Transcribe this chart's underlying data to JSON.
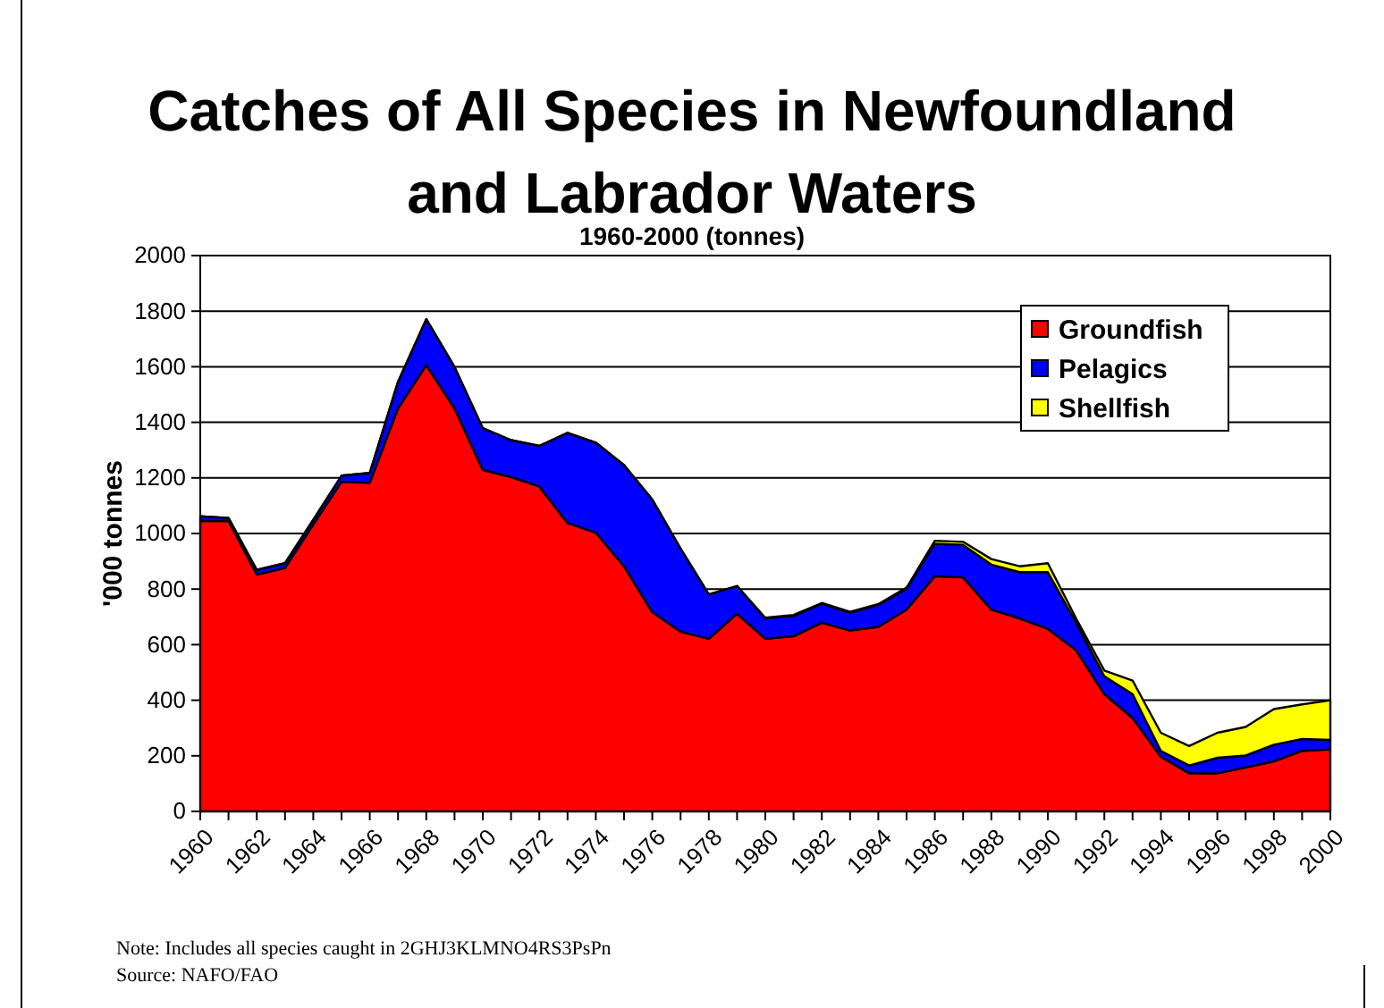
{
  "chart_data": {
    "type": "area",
    "stacked": true,
    "title": "Catches of All Species in Newfoundland and Labrador Waters",
    "subtitle": "1960-2000 (tonnes)",
    "ylabel": "'000 tonnes",
    "annotations": [
      "Note: Includes all species caught in 2GHJ3KLMNO4RS3PsPn",
      "Source: NAFO/FAO"
    ],
    "x": [
      1960,
      1961,
      1962,
      1963,
      1964,
      1965,
      1966,
      1967,
      1968,
      1969,
      1970,
      1971,
      1972,
      1973,
      1974,
      1975,
      1976,
      1977,
      1978,
      1979,
      1980,
      1981,
      1982,
      1983,
      1984,
      1985,
      1986,
      1987,
      1988,
      1989,
      1990,
      1991,
      1992,
      1993,
      1994,
      1995,
      1996,
      1997,
      1998,
      1999,
      2000
    ],
    "series": [
      {
        "name": "Groundfish",
        "color": "#ff0000",
        "values": [
          1045,
          1045,
          852,
          876,
          1032,
          1186,
          1182,
          1450,
          1606,
          1450,
          1229,
          1203,
          1169,
          1038,
          1003,
          882,
          717,
          647,
          621,
          711,
          621,
          630,
          679,
          651,
          664,
          726,
          846,
          842,
          726,
          694,
          657,
          580,
          422,
          336,
          197,
          137,
          137,
          158,
          180,
          218,
          223
        ]
      },
      {
        "name": "Pelagics",
        "color": "#0000ff",
        "values": [
          17,
          11,
          17,
          17,
          17,
          22,
          36,
          96,
          165,
          149,
          150,
          133,
          146,
          324,
          324,
          364,
          405,
          299,
          160,
          100,
          73,
          74,
          68,
          64,
          79,
          75,
          117,
          117,
          162,
          167,
          204,
          99,
          64,
          86,
          21,
          28,
          56,
          43,
          60,
          43,
          34
        ]
      },
      {
        "name": "Shellfish",
        "color": "#ffff00",
        "values": [
          0,
          0,
          0,
          0,
          0,
          0,
          0,
          0,
          0,
          0,
          0,
          0,
          0,
          0,
          0,
          0,
          0,
          0,
          0,
          0,
          3,
          3,
          3,
          3,
          3,
          4,
          11,
          11,
          20,
          21,
          32,
          15,
          21,
          49,
          65,
          70,
          90,
          103,
          128,
          124,
          143
        ]
      }
    ],
    "xlim": [
      1960,
      2000
    ],
    "xticks": [
      1960,
      {
        "value": 1961,
        "label": null
      },
      1962,
      {
        "value": 1963,
        "label": null
      },
      1964,
      {
        "value": 1965,
        "label": null
      },
      1966,
      {
        "value": 1967,
        "label": null
      },
      1968,
      {
        "value": 1969,
        "label": null
      },
      1970,
      {
        "value": 1971,
        "label": null
      },
      1972,
      {
        "value": 1973,
        "label": null
      },
      1974,
      {
        "value": 1975,
        "label": null
      },
      1976,
      {
        "value": 1977,
        "label": null
      },
      1978,
      {
        "value": 1979,
        "label": null
      },
      1980,
      {
        "value": 1981,
        "label": null
      },
      1982,
      {
        "value": 1983,
        "label": null
      },
      1984,
      {
        "value": 1985,
        "label": null
      },
      1986,
      {
        "value": 1987,
        "label": null
      },
      1988,
      {
        "value": 1989,
        "label": null
      },
      1990,
      {
        "value": 1991,
        "label": null
      },
      1992,
      {
        "value": 1993,
        "label": null
      },
      1994,
      {
        "value": 1995,
        "label": null
      },
      1996,
      {
        "value": 1997,
        "label": null
      },
      1998,
      {
        "value": 1999,
        "label": null
      },
      2000
    ],
    "ylim": [
      0,
      2000
    ],
    "yticks": [
      0,
      200,
      400,
      600,
      800,
      1000,
      1200,
      1400,
      1600,
      1800,
      2000
    ],
    "grid": "y",
    "legend": "top right"
  }
}
